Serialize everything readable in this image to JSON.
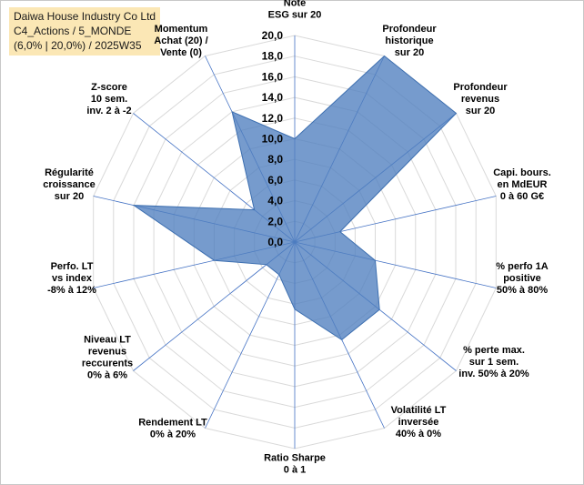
{
  "title": {
    "line1": "Daiwa House Industry Co Ltd",
    "line2": "C4_Actions / 5_MONDE",
    "line3": "(6,0% | 20,0%) / 2025W35"
  },
  "colors": {
    "fill": "#4f7fbf",
    "stroke": "#3d6fb0",
    "grid": "#d9d9d9",
    "spoke": "#4472c4",
    "title_bg": "#fbe7b5"
  },
  "chart_data": {
    "type": "radar",
    "rmin": 0,
    "rmax": 20,
    "tick_step": 2,
    "tick_labels": [
      "0,0",
      "2,0",
      "4,0",
      "6,0",
      "8,0",
      "10,0",
      "12,0",
      "14,0",
      "16,0",
      "18,0",
      "20,0"
    ],
    "grid": true,
    "legend": "none",
    "axes": [
      [
        "Note",
        "ESG sur 20"
      ],
      [
        "Profondeur",
        "historique",
        "sur 20"
      ],
      [
        "Profondeur",
        "revenus",
        "sur 20"
      ],
      [
        "Capi. bours.",
        "en MdEUR",
        "0 à 60 G€"
      ],
      [
        "% perfo 1A",
        "positive",
        "50% à 80%"
      ],
      [
        "% perte max.",
        "sur 1 sem.",
        "inv. 50% à 20%"
      ],
      [
        "Volatilité LT",
        "inversée",
        "40% à 0%"
      ],
      [
        "Ratio Sharpe",
        "0 à 1"
      ],
      [
        "Rendement LT",
        "0% à 20%"
      ],
      [
        "Niveau LT",
        "revenus",
        "reccurents",
        "0% à 6%"
      ],
      [
        "Perfo. LT",
        "vs index",
        "-8% à 12%"
      ],
      [
        "Régularité",
        "croissance",
        "sur 20"
      ],
      [
        "Z-score",
        "10 sem.",
        "inv. 2 à -2"
      ],
      [
        "Momentum",
        "Achat (20) /",
        "Vente (0)"
      ]
    ],
    "values": [
      10.0,
      20.0,
      20.0,
      4.5,
      8.0,
      10.5,
      10.5,
      6.5,
      3.5,
      3.5,
      8.0,
      16.0,
      5.0,
      14.0
    ]
  }
}
